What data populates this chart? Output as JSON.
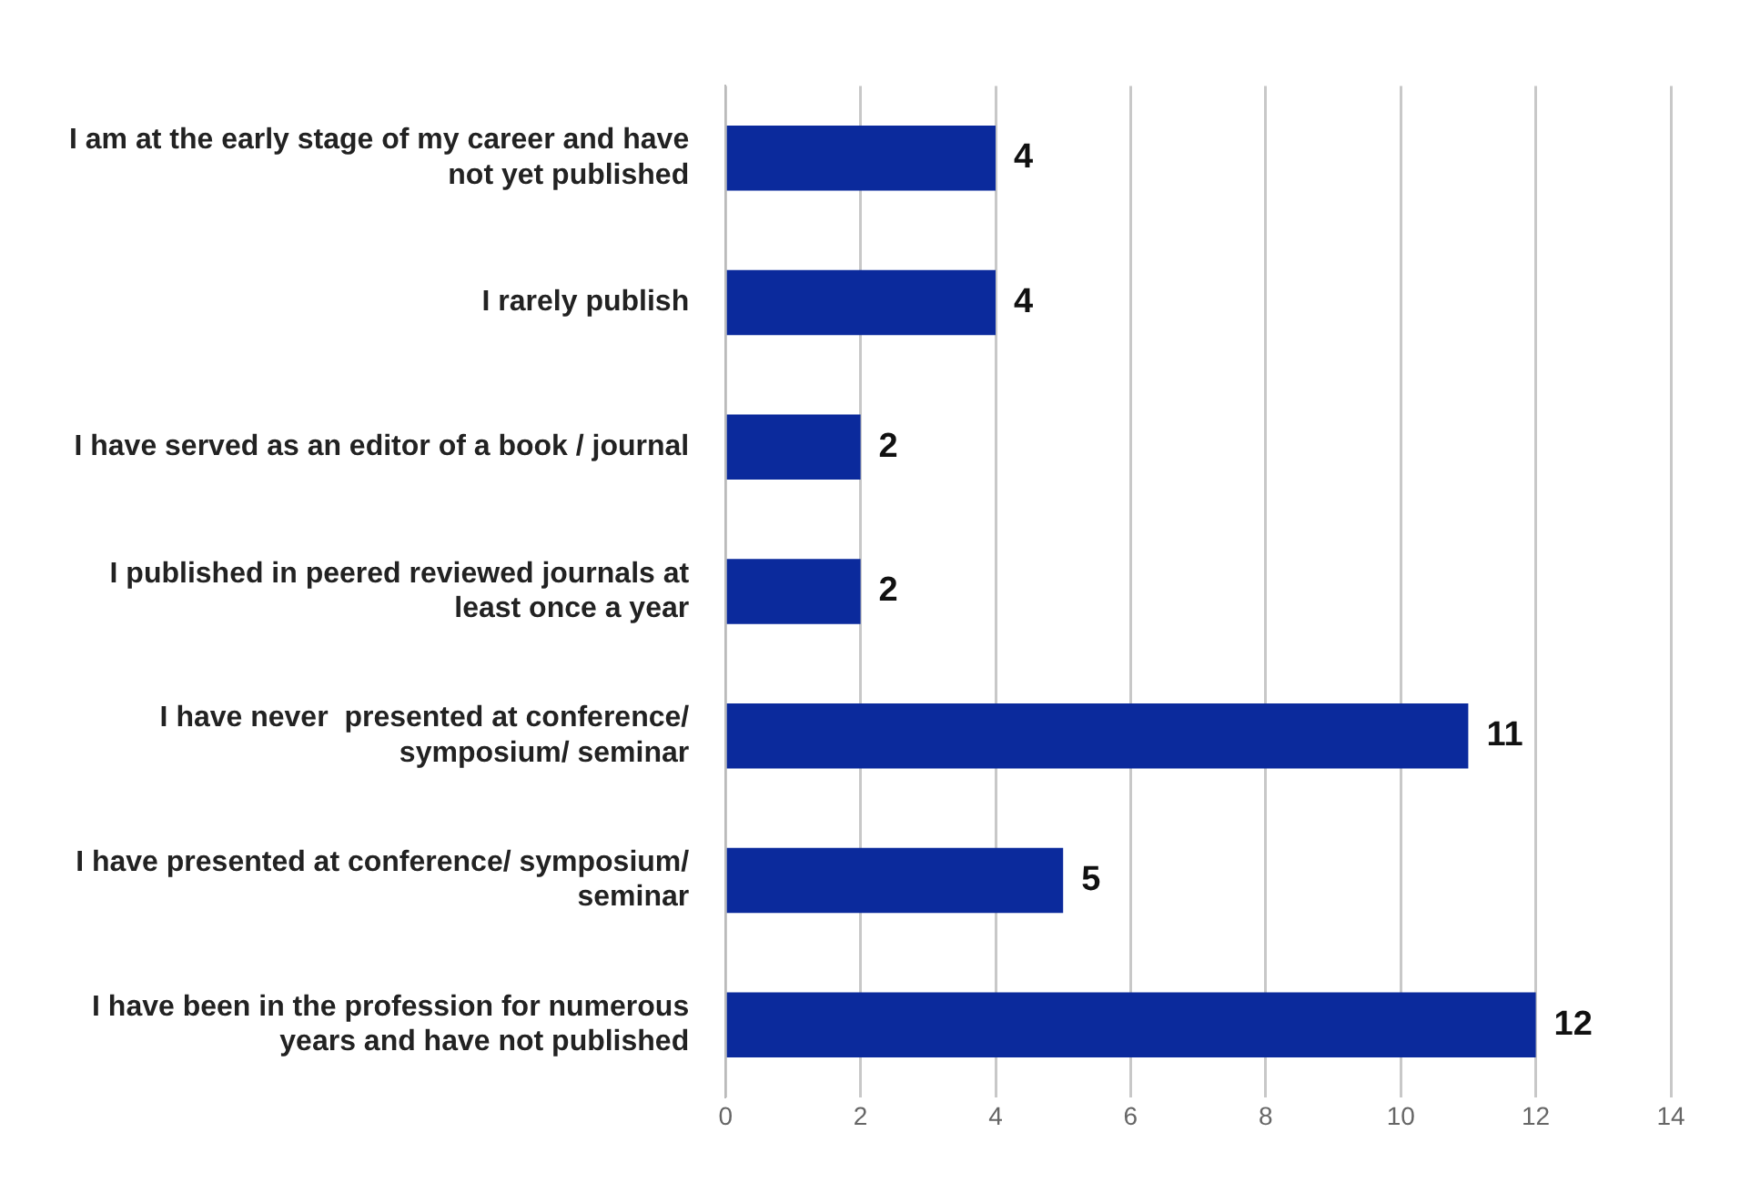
{
  "chart_data": {
    "type": "bar",
    "orientation": "horizontal",
    "categories": [
      "I am at the early stage of my career and have not yet published",
      "I rarely publish",
      "I have served as an editor of a book / journal",
      "I published in peered reviewed journals at least once a year",
      "I have never  presented at conference/ symposium/ seminar",
      "I have presented at conference/ symposium/ seminar",
      "I have been in the profession for numerous years and have not published"
    ],
    "values": [
      4,
      4,
      2,
      2,
      11,
      5,
      12
    ],
    "color": "#0b2a9c",
    "xlim": [
      0,
      14
    ],
    "xticks": [
      0,
      2,
      4,
      6,
      8,
      10,
      12,
      14
    ],
    "grid": "x",
    "data_labels": true,
    "legend": false
  }
}
